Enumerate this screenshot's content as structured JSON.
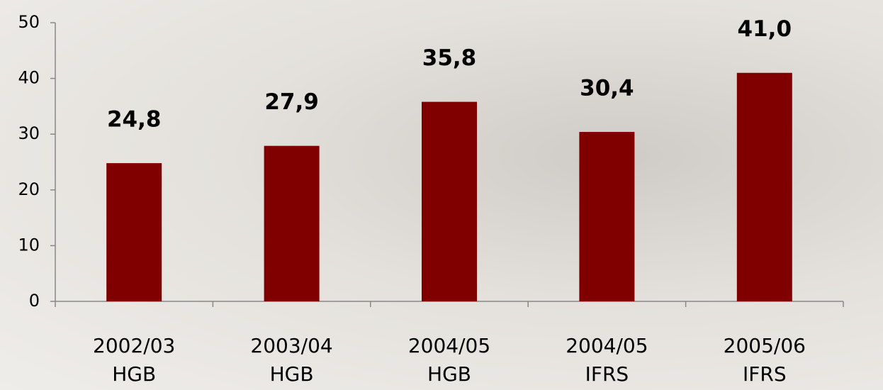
{
  "chart_data": {
    "type": "bar",
    "categories": [
      "2002/03\nHGB",
      "2003/04\nHGB",
      "2004/05\nHGB",
      "2004/05\nIFRS",
      "2005/06\nIFRS"
    ],
    "values": [
      24.8,
      27.9,
      35.8,
      30.4,
      41.0
    ],
    "value_labels": [
      "24,8",
      "27,9",
      "35,8",
      "30,4",
      "41,0"
    ],
    "color": "#800000",
    "ylim": [
      0,
      50
    ],
    "yticks": [
      0,
      10,
      20,
      30,
      40,
      50
    ]
  }
}
